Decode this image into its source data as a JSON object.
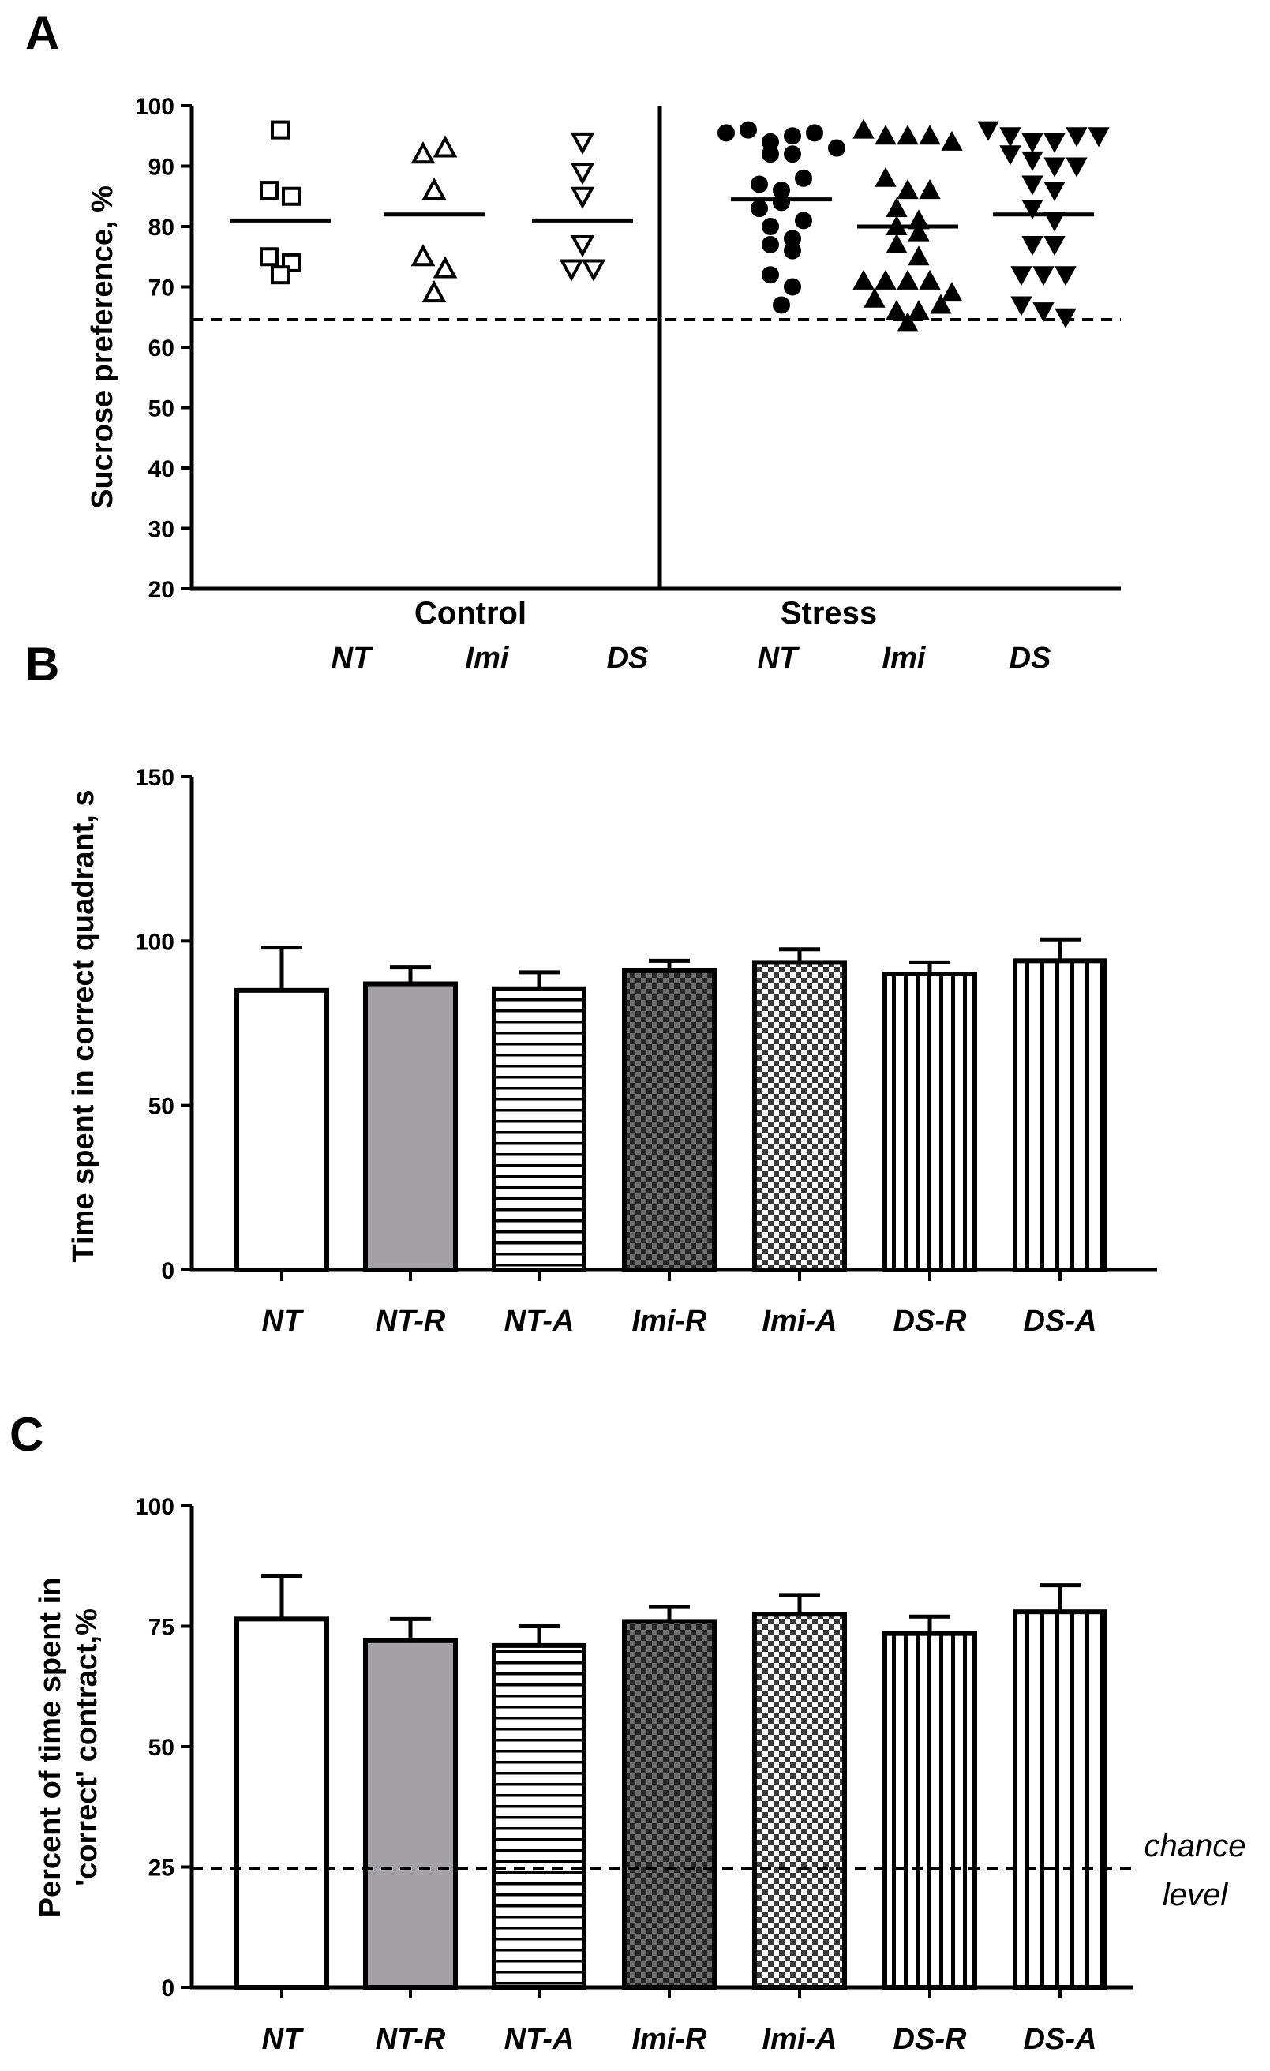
{
  "panels": {
    "A": {
      "letter": "A",
      "ylabel": "Sucrose preference, %",
      "groups": [
        "Control",
        "Stress"
      ],
      "yticks": [
        "20",
        "30",
        "40",
        "50",
        "60",
        "70",
        "80",
        "90",
        "100"
      ]
    },
    "B": {
      "letter": "B",
      "ylabel": "Time spent in correct quadrant, s",
      "yticks": [
        "0",
        "50",
        "100",
        "150"
      ]
    },
    "C": {
      "letter": "C",
      "ylabel_line1": "Percent of time spent in",
      "ylabel_line2": "'correct' contract,%",
      "yticks": [
        "0",
        "25",
        "50",
        "75",
        "100"
      ],
      "annotation_line1": "chance",
      "annotation_line2": "level"
    }
  },
  "chart_data": [
    {
      "type": "scatter",
      "title": "",
      "ylabel": "Sucrose preference, %",
      "ylim": [
        20,
        100
      ],
      "threshold": 64.5,
      "categories": [
        "NT",
        "Imi",
        "DS",
        "NT",
        "Imi",
        "DS"
      ],
      "series": [
        {
          "name": "Control NT",
          "marker": "open-square",
          "mean": 81,
          "values": [
            96,
            86,
            85,
            75,
            74,
            72
          ]
        },
        {
          "name": "Control Imi",
          "marker": "open-triangle-up",
          "mean": 82,
          "values": [
            92,
            93,
            86,
            75,
            73,
            69
          ]
        },
        {
          "name": "Control DS",
          "marker": "open-triangle-down",
          "mean": 81,
          "values": [
            94,
            89,
            85,
            77,
            73,
            73
          ]
        },
        {
          "name": "Stress NT",
          "marker": "filled-circle",
          "mean": 84.5,
          "values": [
            95.5,
            96,
            94,
            95,
            95.5,
            92,
            92,
            93,
            87,
            86,
            88,
            83,
            84,
            81,
            80,
            77,
            76,
            78,
            72,
            70,
            67
          ]
        },
        {
          "name": "Stress Imi",
          "marker": "filled-triangle-up",
          "mean": 80,
          "values": [
            96,
            95,
            95,
            95,
            94,
            88,
            86,
            86,
            83,
            80,
            81,
            79,
            77,
            75,
            71,
            71,
            71,
            71,
            69,
            68,
            66,
            66,
            64,
            67
          ]
        },
        {
          "name": "Stress DS",
          "marker": "filled-triangle-down",
          "mean": 82,
          "values": [
            96,
            95,
            94,
            94,
            95,
            95,
            92,
            91,
            90,
            90,
            87,
            86,
            83,
            81,
            77,
            77,
            72,
            72,
            72,
            67,
            66,
            65
          ]
        }
      ]
    },
    {
      "type": "bar",
      "title": "",
      "ylabel": "Time spent in correct quadrant, s",
      "ylim": [
        0,
        150
      ],
      "categories": [
        "NT",
        "NT-R",
        "NT-A",
        "Imi-R",
        "Imi-A",
        "DS-R",
        "DS-A"
      ],
      "values": [
        85,
        87,
        85.5,
        91,
        93.5,
        90,
        94
      ],
      "errors": [
        13,
        5,
        5,
        3,
        4,
        3.5,
        6.5
      ],
      "patterns": [
        "white",
        "grey",
        "horizontal",
        "dark-check",
        "light-check",
        "vertical",
        "vertical-wide"
      ]
    },
    {
      "type": "bar",
      "title": "",
      "ylabel": "Percent of time spent in 'correct' contract,%",
      "ylim": [
        0,
        100
      ],
      "categories": [
        "NT",
        "NT-R",
        "NT-A",
        "Imi-R",
        "Imi-A",
        "DS-R",
        "DS-A"
      ],
      "values": [
        76.5,
        72,
        71,
        76,
        77.5,
        73.5,
        78
      ],
      "errors": [
        9,
        4.5,
        4,
        3,
        4,
        3.5,
        5.5
      ],
      "chance_level": 25,
      "patterns": [
        "white",
        "grey",
        "horizontal",
        "dark-check",
        "light-check",
        "vertical",
        "vertical-wide"
      ]
    }
  ]
}
